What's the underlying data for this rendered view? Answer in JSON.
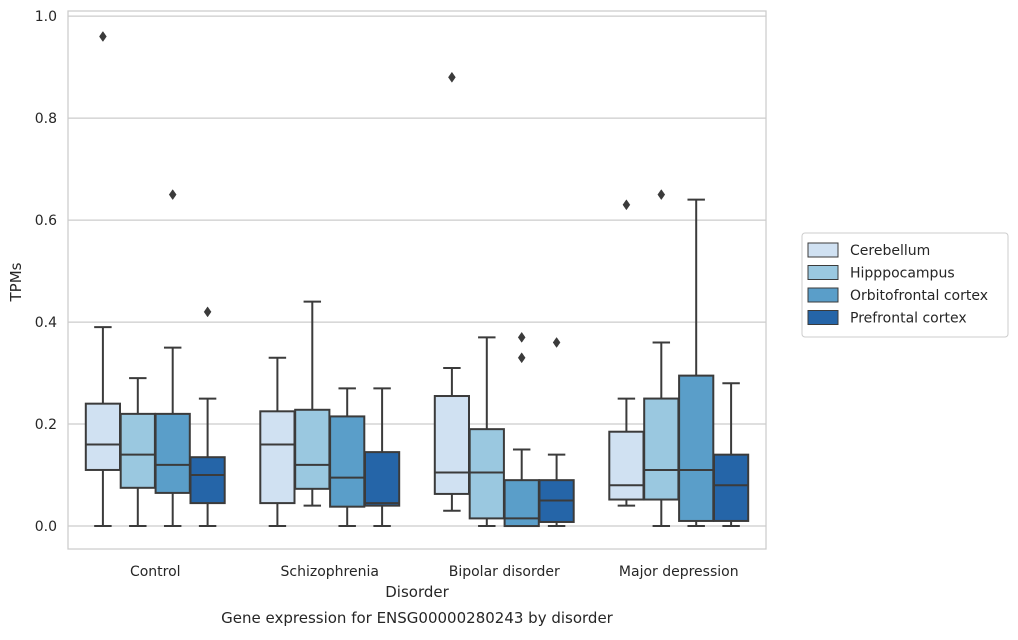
{
  "chart_data": {
    "type": "boxplot",
    "title": "",
    "caption": "Gene expression for ENSG00000280243 by disorder",
    "xlabel": "Disorder",
    "ylabel": "TPMs",
    "ylim": [
      -0.045,
      1.01
    ],
    "yticks": [
      0.0,
      0.2,
      0.4,
      0.6,
      0.8,
      1.0
    ],
    "ytick_labels": [
      "0.0",
      "0.2",
      "0.4",
      "0.6",
      "0.8",
      "1.0"
    ],
    "categories": [
      "Control",
      "Schizophrenia",
      "Bipolar disorder",
      "Major depression"
    ],
    "grid": true,
    "legend_placement": "right",
    "series": [
      {
        "name": "Cerebellum",
        "color": "#d0e1f2",
        "boxes": [
          {
            "whislo": 0.0,
            "q1": 0.11,
            "med": 0.16,
            "q3": 0.24,
            "whishi": 0.39,
            "fliers": [
              0.96
            ]
          },
          {
            "whislo": 0.0,
            "q1": 0.045,
            "med": 0.16,
            "q3": 0.225,
            "whishi": 0.33,
            "fliers": []
          },
          {
            "whislo": 0.03,
            "q1": 0.063,
            "med": 0.105,
            "q3": 0.255,
            "whishi": 0.31,
            "fliers": [
              0.88
            ]
          },
          {
            "whislo": 0.04,
            "q1": 0.052,
            "med": 0.08,
            "q3": 0.185,
            "whishi": 0.25,
            "fliers": [
              0.63
            ]
          }
        ]
      },
      {
        "name": "Hipppocampus",
        "color": "#9ac8e0",
        "boxes": [
          {
            "whislo": 0.0,
            "q1": 0.075,
            "med": 0.14,
            "q3": 0.22,
            "whishi": 0.29,
            "fliers": []
          },
          {
            "whislo": 0.04,
            "q1": 0.073,
            "med": 0.12,
            "q3": 0.228,
            "whishi": 0.44,
            "fliers": []
          },
          {
            "whislo": 0.0,
            "q1": 0.015,
            "med": 0.105,
            "q3": 0.19,
            "whishi": 0.37,
            "fliers": []
          },
          {
            "whislo": 0.0,
            "q1": 0.052,
            "med": 0.11,
            "q3": 0.25,
            "whishi": 0.36,
            "fliers": [
              0.65
            ]
          }
        ]
      },
      {
        "name": "Orbitofrontal cortex",
        "color": "#5a9ec9",
        "boxes": [
          {
            "whislo": 0.0,
            "q1": 0.065,
            "med": 0.12,
            "q3": 0.22,
            "whishi": 0.35,
            "fliers": [
              0.65
            ]
          },
          {
            "whislo": 0.0,
            "q1": 0.038,
            "med": 0.095,
            "q3": 0.215,
            "whishi": 0.27,
            "fliers": []
          },
          {
            "whislo": 0.0,
            "q1": 0.0,
            "med": 0.015,
            "q3": 0.09,
            "whishi": 0.15,
            "fliers": [
              0.33,
              0.37
            ]
          },
          {
            "whislo": 0.0,
            "q1": 0.01,
            "med": 0.11,
            "q3": 0.295,
            "whishi": 0.64,
            "fliers": []
          }
        ]
      },
      {
        "name": "Prefrontal cortex",
        "color": "#2565a8",
        "boxes": [
          {
            "whislo": 0.0,
            "q1": 0.045,
            "med": 0.1,
            "q3": 0.135,
            "whishi": 0.25,
            "fliers": [
              0.42
            ]
          },
          {
            "whislo": 0.0,
            "q1": 0.04,
            "med": 0.045,
            "q3": 0.145,
            "whishi": 0.27,
            "fliers": []
          },
          {
            "whislo": 0.0,
            "q1": 0.008,
            "med": 0.05,
            "q3": 0.09,
            "whishi": 0.14,
            "fliers": [
              0.36
            ]
          },
          {
            "whislo": 0.0,
            "q1": 0.01,
            "med": 0.08,
            "q3": 0.14,
            "whishi": 0.28,
            "fliers": []
          }
        ]
      }
    ]
  }
}
